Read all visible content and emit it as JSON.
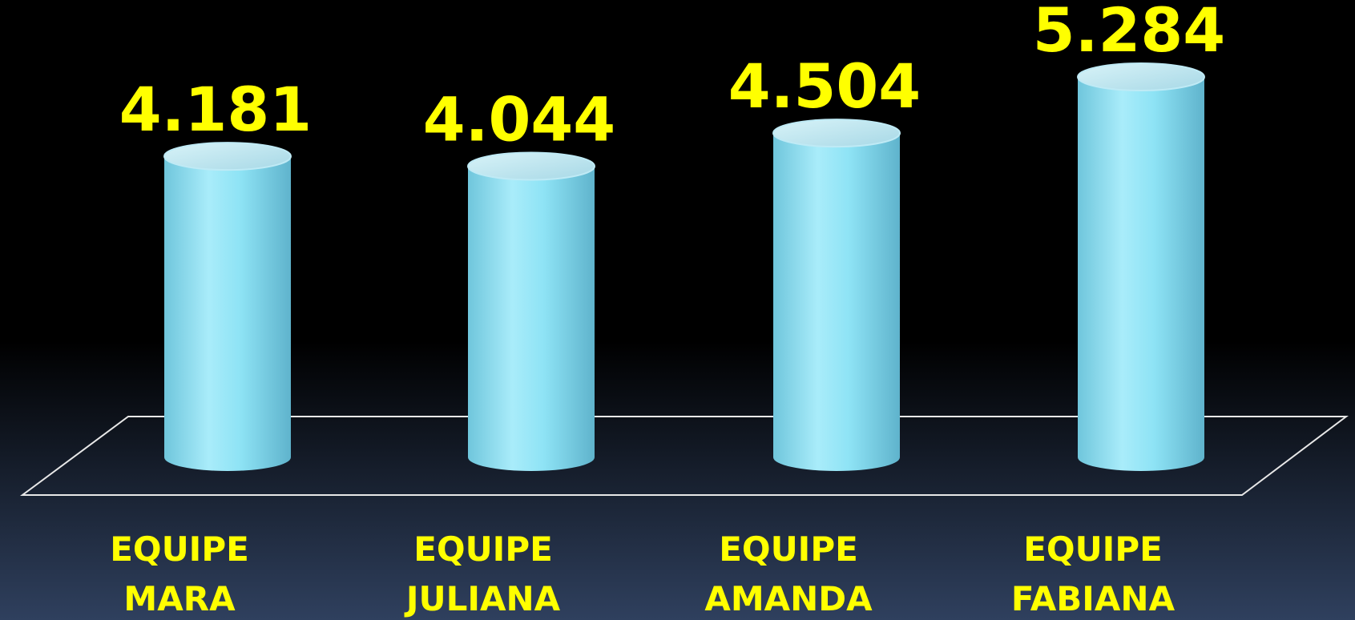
{
  "chart_data": {
    "type": "bar",
    "categories": [
      "EQUIPE MARA",
      "EQUIPE JULIANA",
      "EQUIPE AMANDA",
      "EQUIPE FABIANA"
    ],
    "values": [
      4181,
      4044,
      4504,
      5284
    ],
    "value_labels": [
      "4.181",
      "4.044",
      "4.504",
      "5.284"
    ],
    "color": "#8ee3f5"
  }
}
